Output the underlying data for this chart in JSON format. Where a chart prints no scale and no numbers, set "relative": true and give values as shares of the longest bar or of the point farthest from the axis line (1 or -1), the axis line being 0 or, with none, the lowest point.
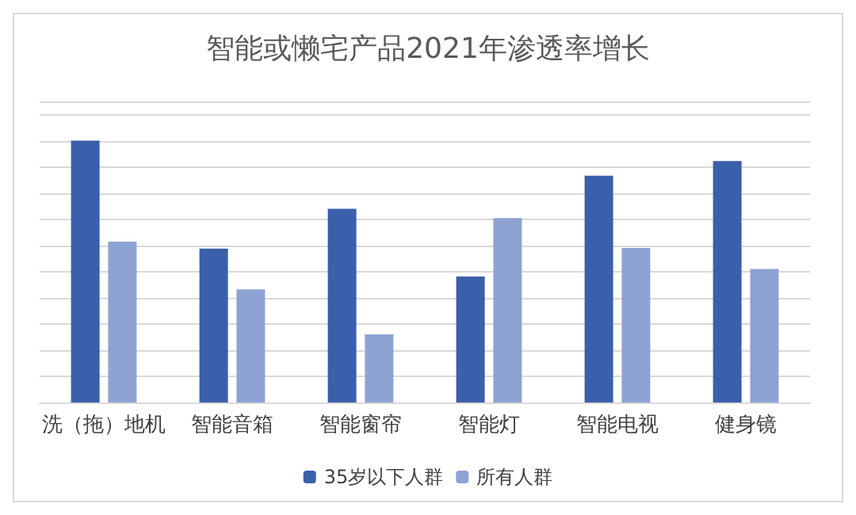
{
  "chart_data": {
    "type": "bar",
    "title": "智能或懒宅产品2021年渗透率增长",
    "categories": [
      "洗（拖）地机",
      "智能音箱",
      "智能窗帘",
      "智能灯",
      "智能电视",
      "健身镜"
    ],
    "relative": true,
    "grid": "y",
    "legend": "bottom",
    "series": [
      {
        "name": "35岁以下人群",
        "color": "#3a5fab",
        "values": [
          1,
          0.588,
          0.74,
          0.481,
          0.866,
          0.922
        ]
      },
      {
        "name": "所有人群",
        "color": "#8fa2d4",
        "values": [
          0.614,
          0.432,
          0.26,
          0.704,
          0.59,
          0.51
        ]
      }
    ]
  }
}
